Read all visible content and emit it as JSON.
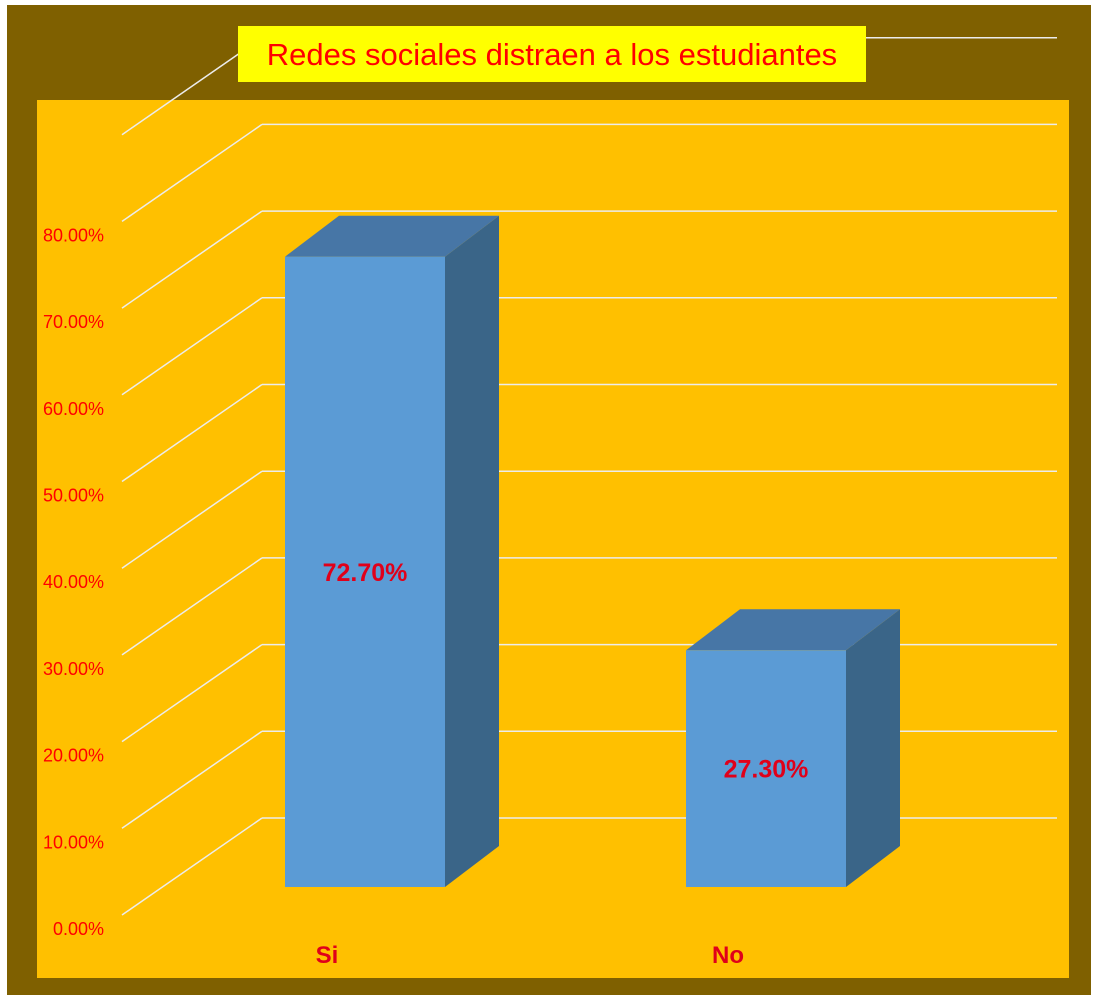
{
  "chart_data": {
    "type": "bar",
    "title": "Redes sociales distraen a los estudiantes",
    "categories": [
      "Si",
      "No"
    ],
    "values": [
      72.7,
      27.3
    ],
    "data_labels": [
      "72.70%",
      "27.30%"
    ],
    "y_ticks": [
      "0.00%",
      "10.00%",
      "20.00%",
      "30.00%",
      "40.00%",
      "50.00%",
      "60.00%",
      "70.00%",
      "80.00%"
    ],
    "ylim": [
      0,
      90
    ],
    "grid": true,
    "xlabel": "",
    "ylabel": ""
  },
  "colors": {
    "frame_border": "#7f6000",
    "plot_background": "#ffc000",
    "title_background": "#ffff00",
    "text": "#ff0000",
    "data_label": "#e0001a",
    "bar_front": "#5b9bd5",
    "bar_top": "#4776a6",
    "bar_side": "#3a6588",
    "gridline": "#ececec"
  }
}
